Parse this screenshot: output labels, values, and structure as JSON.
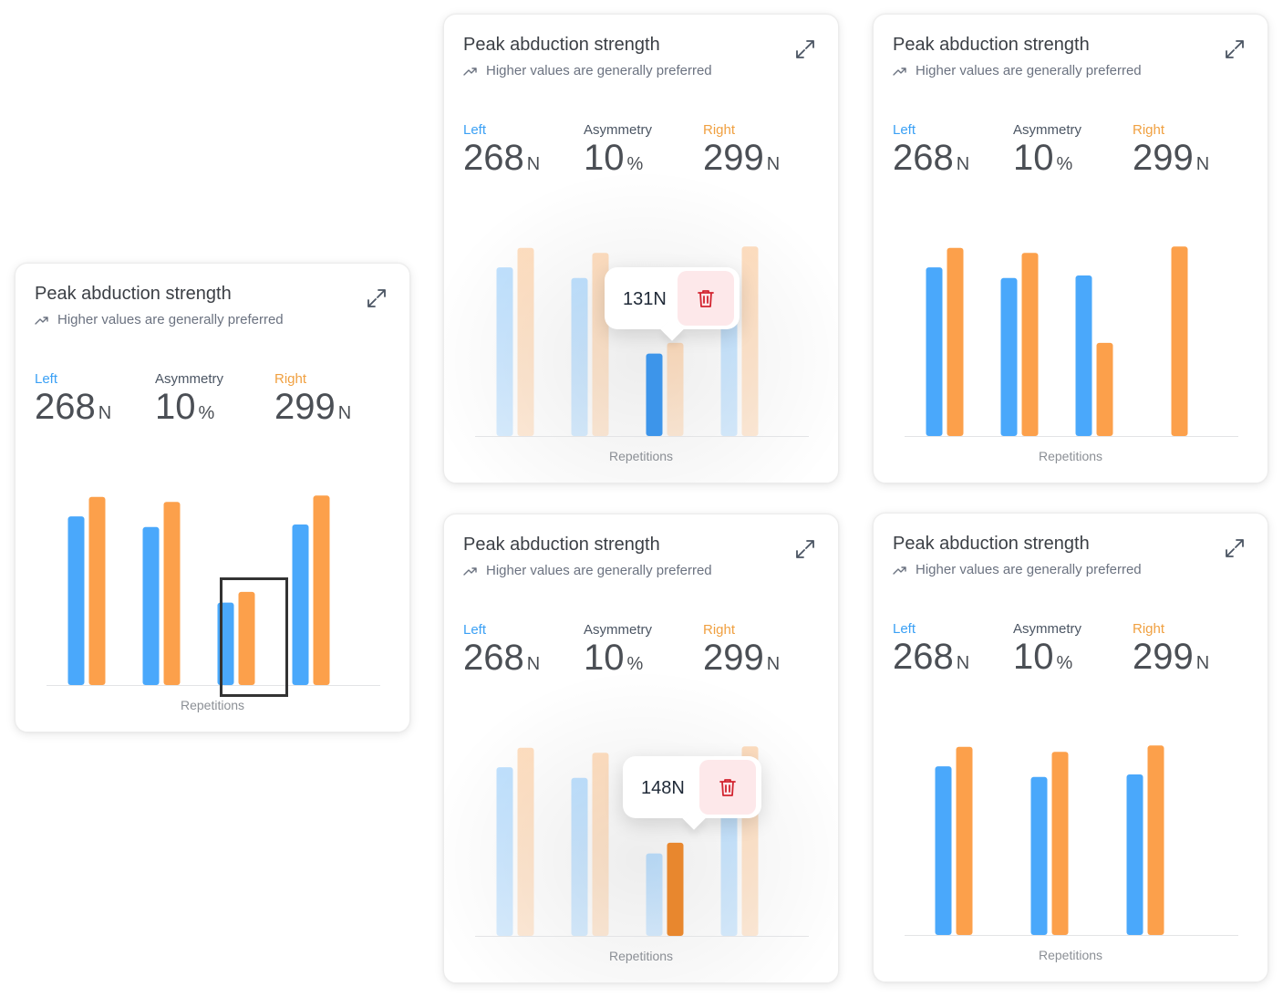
{
  "colors": {
    "left": "#4aa8fb",
    "right": "#fca04b",
    "left_label": "#3aa0f5",
    "right_label": "#f0a040",
    "left_dark": "#3d95ea",
    "right_dark": "#e8872e",
    "delete_bg": "#fde8ea",
    "delete_icon": "#d2232f"
  },
  "icons": {
    "trend": "trending-up-icon",
    "expand": "expand-icon",
    "delete": "trash-icon"
  },
  "cards": [
    {
      "title": "Peak abduction strength",
      "subtitle": "Higher values are generally preferred",
      "left": {
        "label": "Left",
        "value": "268",
        "unit": "N"
      },
      "asym": {
        "label": "Asymmetry",
        "value": "10",
        "unit": "%"
      },
      "right": {
        "label": "Right",
        "value": "299",
        "unit": "N"
      },
      "xlabel": "Repetitions"
    },
    {
      "title": "Peak abduction strength",
      "subtitle": "Higher values are generally preferred",
      "left": {
        "label": "Left",
        "value": "268",
        "unit": "N"
      },
      "asym": {
        "label": "Asymmetry",
        "value": "10",
        "unit": "%"
      },
      "right": {
        "label": "Right",
        "value": "299",
        "unit": "N"
      },
      "xlabel": "Repetitions",
      "tooltip": {
        "text": "131N"
      }
    },
    {
      "title": "Peak abduction strength",
      "subtitle": "Higher values are generally preferred",
      "left": {
        "label": "Left",
        "value": "268",
        "unit": "N"
      },
      "asym": {
        "label": "Asymmetry",
        "value": "10",
        "unit": "%"
      },
      "right": {
        "label": "Right",
        "value": "299",
        "unit": "N"
      },
      "xlabel": "Repetitions"
    },
    {
      "title": "Peak abduction strength",
      "subtitle": "Higher values are generally preferred",
      "left": {
        "label": "Left",
        "value": "268",
        "unit": "N"
      },
      "asym": {
        "label": "Asymmetry",
        "value": "10",
        "unit": "%"
      },
      "right": {
        "label": "Right",
        "value": "299",
        "unit": "N"
      },
      "xlabel": "Repetitions",
      "tooltip": {
        "text": "148N"
      }
    },
    {
      "title": "Peak abduction strength",
      "subtitle": "Higher values are generally preferred",
      "left": {
        "label": "Left",
        "value": "268",
        "unit": "N"
      },
      "asym": {
        "label": "Asymmetry",
        "value": "10",
        "unit": "%"
      },
      "right": {
        "label": "Right",
        "value": "299",
        "unit": "N"
      },
      "xlabel": "Repetitions"
    }
  ],
  "chart_data": [
    {
      "type": "bar",
      "xlabel": "Repetitions",
      "ylim": [
        0,
        300
      ],
      "series": [
        {
          "values": [
            268,
            251,
            131,
            255
          ]
        },
        {
          "values": [
            299,
            291,
            148,
            301
          ]
        }
      ],
      "selected_group": 2
    },
    {
      "type": "bar",
      "xlabel": "Repetitions",
      "ylim": [
        0,
        300
      ],
      "series": [
        {
          "values": [
            268,
            251,
            131,
            255
          ]
        },
        {
          "values": [
            299,
            291,
            148,
            301
          ]
        }
      ],
      "selected": {
        "series": 0,
        "index": 2,
        "value": 131
      }
    },
    {
      "type": "bar",
      "xlabel": "Repetitions",
      "ylim": [
        0,
        300
      ],
      "series": [
        {
          "values": [
            268,
            251,
            255,
            null
          ]
        },
        {
          "values": [
            299,
            291,
            148,
            301
          ]
        }
      ]
    },
    {
      "type": "bar",
      "xlabel": "Repetitions",
      "ylim": [
        0,
        300
      ],
      "series": [
        {
          "values": [
            268,
            251,
            131,
            255
          ]
        },
        {
          "values": [
            299,
            291,
            148,
            301
          ]
        }
      ],
      "selected": {
        "series": 1,
        "index": 2,
        "value": 148
      }
    },
    {
      "type": "bar",
      "xlabel": "Repetitions",
      "ylim": [
        0,
        300
      ],
      "series": [
        {
          "values": [
            268,
            251,
            255
          ]
        },
        {
          "values": [
            299,
            291,
            301
          ]
        }
      ]
    }
  ]
}
